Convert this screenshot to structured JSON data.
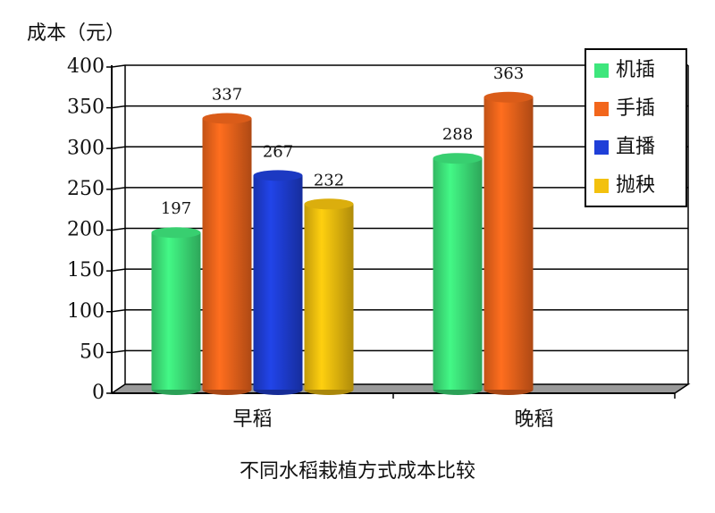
{
  "chart_data": {
    "type": "bar",
    "title": "不同水稻栽植方式成本比较",
    "y_label": "成本（元）",
    "categories": [
      "早稻",
      "晚稻"
    ],
    "series": [
      {
        "name": "机插",
        "color": "#3ee67c",
        "values": [
          197,
          288
        ]
      },
      {
        "name": "手插",
        "color": "#f2661c",
        "values": [
          337,
          363
        ]
      },
      {
        "name": "直播",
        "color": "#1f3fd8",
        "values": [
          267,
          null
        ]
      },
      {
        "name": "抛秧",
        "color": "#f3c10e",
        "values": [
          232,
          null
        ]
      }
    ],
    "ylim": [
      0,
      400
    ],
    "yticks": [
      0,
      50,
      100,
      150,
      200,
      250,
      300,
      350,
      400
    ],
    "grid": true,
    "legend": "top-right"
  }
}
